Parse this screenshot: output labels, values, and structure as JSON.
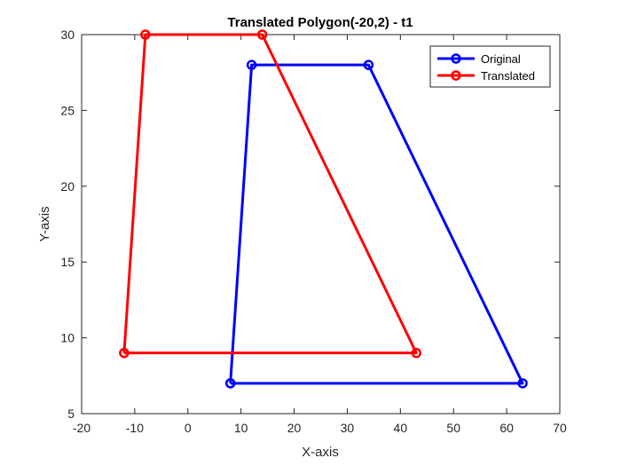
{
  "chart_data": {
    "type": "line",
    "title": "Translated Polygon(-20,2) - t1",
    "xlabel": "X-axis",
    "ylabel": "Y-axis",
    "xlim": [
      -20,
      70
    ],
    "ylim": [
      5,
      30
    ],
    "xticks": [
      -20,
      -10,
      0,
      10,
      20,
      30,
      40,
      50,
      60,
      70
    ],
    "yticks": [
      5,
      10,
      15,
      20,
      25,
      30
    ],
    "grid": false,
    "legend_position": "top-right",
    "series": [
      {
        "name": "Original",
        "color": "#0000ff",
        "marker": "circle",
        "x": [
          8,
          12,
          34,
          63,
          8
        ],
        "y": [
          7,
          28,
          28,
          7,
          7
        ]
      },
      {
        "name": "Translated",
        "color": "#ff0000",
        "marker": "circle",
        "x": [
          -12,
          -8,
          14,
          43,
          -12
        ],
        "y": [
          9,
          30,
          30,
          9,
          9
        ]
      }
    ]
  }
}
